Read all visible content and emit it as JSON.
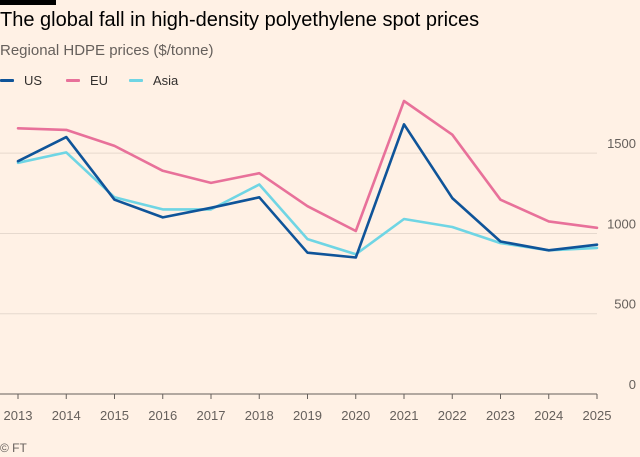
{
  "header": {
    "title": "The global fall in high-density polyethylene spot prices",
    "subtitle": "Regional HDPE prices ($/tonne)"
  },
  "footer": {
    "source": "© FT"
  },
  "colors": {
    "background": "#FFF1E5",
    "US": "#0F5499",
    "EU": "#E8719A",
    "Asia": "#6FD5E4",
    "grid": "#E6D9CE",
    "axis": "#66605C"
  },
  "chart_data": {
    "type": "line",
    "title": "The global fall in high-density polyethylene spot prices",
    "subtitle": "Regional HDPE prices ($/tonne)",
    "xlabel": "",
    "ylabel": "",
    "x": [
      "2013",
      "2014",
      "2015",
      "2016",
      "2017",
      "2018",
      "2019",
      "2020",
      "2021",
      "2022",
      "2023",
      "2024",
      "2025"
    ],
    "ylim": [
      0,
      1800
    ],
    "yticks": [
      0,
      500,
      1000,
      1500
    ],
    "grid": true,
    "legend_position": "top-left",
    "series": [
      {
        "name": "US",
        "color": "#0F5499",
        "values": [
          1450,
          1600,
          1210,
          1100,
          1160,
          1225,
          880,
          850,
          1680,
          1220,
          950,
          895,
          930
        ]
      },
      {
        "name": "EU",
        "color": "#E8719A",
        "values": [
          1655,
          1645,
          1545,
          1390,
          1315,
          1375,
          1170,
          1015,
          1825,
          1615,
          1210,
          1075,
          1035
        ]
      },
      {
        "name": "Asia",
        "color": "#6FD5E4",
        "values": [
          1440,
          1505,
          1225,
          1150,
          1150,
          1305,
          965,
          870,
          1090,
          1040,
          940,
          895,
          910
        ]
      }
    ]
  }
}
